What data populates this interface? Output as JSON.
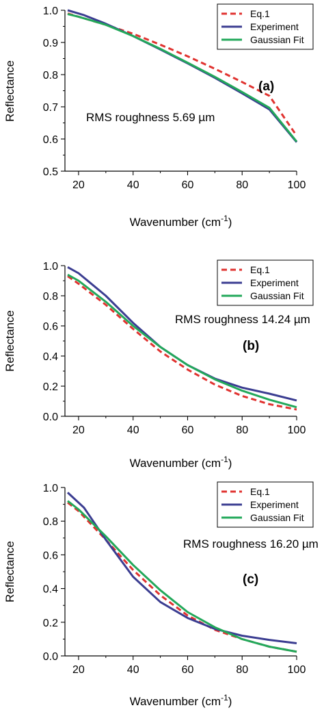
{
  "chart_data": [
    {
      "type": "line",
      "panel_label": "(a)",
      "annotation": "RMS roughness  5.69 µm",
      "xlabel_prefix": "Wavenumber (cm",
      "xlabel_exp": "-1",
      "xlabel_suffix": ")",
      "ylabel": "Reflectance",
      "xlim": [
        15,
        100
      ],
      "ylim": [
        0.5,
        1.0
      ],
      "xticks": [
        20,
        40,
        60,
        80,
        100
      ],
      "yticks": [
        0.5,
        0.6,
        0.7,
        0.8,
        0.9,
        1.0
      ],
      "ytick_labels": [
        "0.5",
        "0.6",
        "0.7",
        "0.8",
        "0.9",
        "1.0"
      ],
      "legend_position": "top-right",
      "series": [
        {
          "name": "Eq.1",
          "color": "#e0322f",
          "dash": true,
          "x": [
            16,
            20,
            30,
            40,
            50,
            60,
            70,
            80,
            90,
            100
          ],
          "y": [
            0.99,
            0.98,
            0.955,
            0.927,
            0.893,
            0.857,
            0.818,
            0.777,
            0.734,
            0.61
          ]
        },
        {
          "name": "Experiment",
          "color": "#3b3d91",
          "dash": false,
          "x": [
            16,
            20,
            22,
            30,
            40,
            50,
            60,
            70,
            80,
            90,
            100
          ],
          "y": [
            1.0,
            0.99,
            0.985,
            0.958,
            0.92,
            0.878,
            0.835,
            0.79,
            0.742,
            0.692,
            0.59
          ]
        },
        {
          "name": "Gaussian Fit",
          "color": "#22a85a",
          "dash": false,
          "x": [
            16,
            20,
            30,
            40,
            50,
            60,
            70,
            80,
            90,
            100
          ],
          "y": [
            0.988,
            0.98,
            0.955,
            0.92,
            0.88,
            0.837,
            0.793,
            0.746,
            0.697,
            0.592
          ]
        }
      ]
    },
    {
      "type": "line",
      "panel_label": "(b)",
      "annotation": "RMS roughness 14.24 µm",
      "xlabel_prefix": "Wavenumber (cm",
      "xlabel_exp": "-1",
      "xlabel_suffix": ")",
      "ylabel": "Reflectance",
      "xlim": [
        15,
        100
      ],
      "ylim": [
        0.0,
        1.0
      ],
      "xticks": [
        20,
        40,
        60,
        80,
        100
      ],
      "yticks": [
        0.0,
        0.2,
        0.4,
        0.6,
        0.8,
        1.0
      ],
      "ytick_labels": [
        "0.0",
        "0.2",
        "0.4",
        "0.6",
        "0.8",
        "1.0"
      ],
      "legend_position": "top-right",
      "series": [
        {
          "name": "Eq.1",
          "color": "#e0322f",
          "dash": true,
          "x": [
            16,
            20,
            30,
            40,
            50,
            60,
            70,
            80,
            90,
            100
          ],
          "y": [
            0.93,
            0.88,
            0.74,
            0.58,
            0.43,
            0.31,
            0.21,
            0.135,
            0.08,
            0.045
          ]
        },
        {
          "name": "Experiment",
          "color": "#3b3d91",
          "dash": false,
          "x": [
            16,
            20,
            30,
            40,
            50,
            60,
            70,
            80,
            90,
            100
          ],
          "y": [
            0.99,
            0.95,
            0.8,
            0.62,
            0.46,
            0.34,
            0.25,
            0.19,
            0.15,
            0.105
          ]
        },
        {
          "name": "Gaussian Fit",
          "color": "#22a85a",
          "dash": false,
          "x": [
            16,
            20,
            30,
            40,
            50,
            60,
            70,
            80,
            90,
            100
          ],
          "y": [
            0.94,
            0.9,
            0.76,
            0.6,
            0.46,
            0.34,
            0.245,
            0.17,
            0.11,
            0.06
          ]
        }
      ]
    },
    {
      "type": "line",
      "panel_label": "(c)",
      "annotation": "RMS roughness 16.20 µm",
      "xlabel_prefix": "Wavenumber (cm",
      "xlabel_exp": "-1",
      "xlabel_suffix": ")",
      "ylabel": "Reflectance",
      "xlim": [
        15,
        100
      ],
      "ylim": [
        0.0,
        1.0
      ],
      "xticks": [
        20,
        40,
        60,
        80,
        100
      ],
      "yticks": [
        0.0,
        0.2,
        0.4,
        0.6,
        0.8,
        1.0
      ],
      "ytick_labels": [
        "0.0",
        "0.2",
        "0.4",
        "0.6",
        "0.8",
        "1.0"
      ],
      "legend_position": "top-right",
      "series": [
        {
          "name": "Eq.1",
          "color": "#e0322f",
          "dash": true,
          "x": [
            16,
            20,
            30,
            40,
            50,
            60,
            70,
            80,
            90,
            100
          ],
          "y": [
            0.91,
            0.86,
            0.69,
            0.51,
            0.36,
            0.24,
            0.155,
            0.1,
            0.055,
            0.025
          ]
        },
        {
          "name": "Experiment",
          "color": "#3b3d91",
          "dash": false,
          "x": [
            16,
            22,
            30,
            40,
            50,
            60,
            70,
            80,
            90,
            100
          ],
          "y": [
            0.97,
            0.88,
            0.69,
            0.47,
            0.32,
            0.225,
            0.16,
            0.12,
            0.095,
            0.075
          ]
        },
        {
          "name": "Gaussian Fit",
          "color": "#22a85a",
          "dash": false,
          "x": [
            16,
            20,
            30,
            40,
            50,
            60,
            70,
            80,
            90,
            100
          ],
          "y": [
            0.92,
            0.87,
            0.71,
            0.54,
            0.39,
            0.26,
            0.17,
            0.1,
            0.055,
            0.025
          ]
        }
      ]
    }
  ]
}
